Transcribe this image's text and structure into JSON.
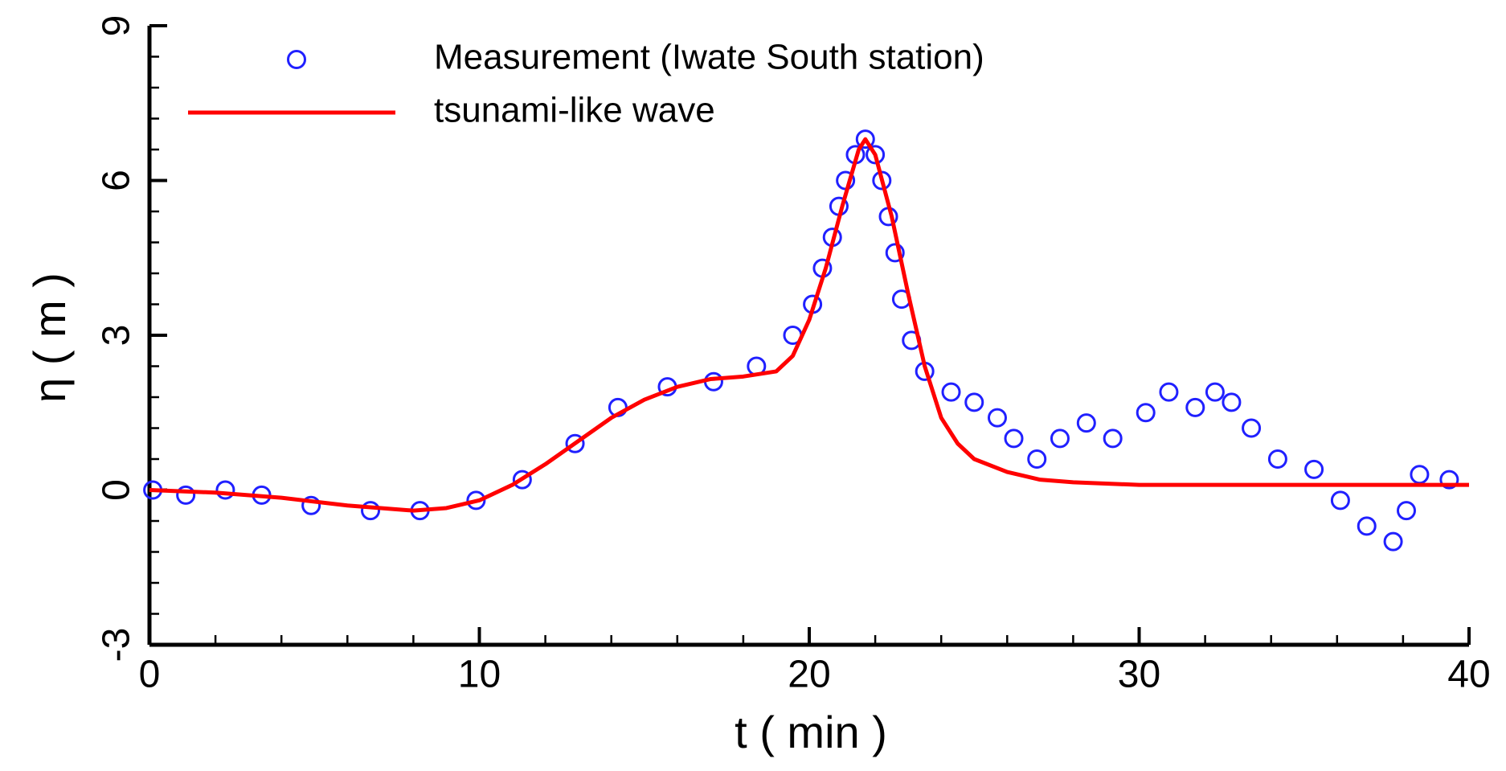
{
  "chart_data": {
    "type": "line",
    "xlabel": "t ( min )",
    "ylabel": "η ( m )",
    "xlim": [
      0,
      40
    ],
    "xticks": [
      0,
      10,
      20,
      30,
      40
    ],
    "xminorticks": [
      2,
      4,
      6,
      8,
      12,
      14,
      16,
      18,
      22,
      24,
      26,
      28,
      32,
      34,
      36,
      38
    ],
    "ylim": [
      -3,
      9
    ],
    "yticks": [
      -3,
      0,
      3,
      6,
      9
    ],
    "yminorticks": [
      -2.4,
      -1.8,
      -1.2,
      -0.6,
      0.6,
      1.2,
      1.8,
      2.4,
      3.6,
      4.2,
      4.8,
      5.4,
      6.6,
      7.2,
      7.8,
      8.4
    ],
    "legend": "upper left",
    "series": [
      {
        "name": "Measurement (Iwate South station)",
        "type": "scatter",
        "color": "#2020ff",
        "x": [
          0.1,
          1.1,
          2.3,
          3.4,
          4.9,
          6.7,
          8.2,
          9.9,
          11.3,
          12.9,
          14.2,
          15.7,
          17.1,
          18.4,
          19.5,
          20.1,
          20.4,
          20.7,
          20.9,
          21.1,
          21.4,
          21.7,
          22.0,
          22.2,
          22.4,
          22.6,
          22.8,
          23.1,
          23.5,
          24.3,
          25.0,
          25.7,
          26.2,
          26.9,
          27.6,
          28.4,
          29.2,
          30.2,
          30.9,
          31.7,
          32.3,
          32.8,
          33.4,
          34.2,
          35.3,
          36.1,
          36.9,
          37.7,
          38.1,
          38.5,
          39.4
        ],
        "values": [
          0,
          -0.1,
          0,
          -0.1,
          -0.3,
          -0.4,
          -0.4,
          -0.2,
          0.2,
          0.9,
          1.6,
          2.0,
          2.1,
          2.4,
          3.0,
          3.6,
          4.3,
          4.9,
          5.5,
          6.0,
          6.5,
          6.8,
          6.5,
          6.0,
          5.3,
          4.6,
          3.7,
          2.9,
          2.3,
          1.9,
          1.7,
          1.4,
          1.0,
          0.6,
          1.0,
          1.3,
          1.0,
          1.5,
          1.9,
          1.6,
          1.9,
          1.7,
          1.2,
          0.6,
          0.4,
          -0.2,
          -0.7,
          -1.0,
          -0.4,
          0.3,
          0.2
        ]
      },
      {
        "name": "tsunami-like wave",
        "type": "line",
        "color": "#ff0000",
        "x": [
          0,
          2,
          4,
          6,
          8,
          9,
          10,
          11,
          12,
          13,
          14,
          15,
          16,
          17,
          18,
          19,
          19.5,
          20,
          20.5,
          21,
          21.5,
          21.7,
          22,
          22.5,
          23,
          23.5,
          24,
          24.5,
          25,
          26,
          27,
          28,
          30,
          35,
          40
        ],
        "values": [
          0,
          -0.05,
          -0.15,
          -0.3,
          -0.4,
          -0.35,
          -0.2,
          0.1,
          0.5,
          0.95,
          1.4,
          1.75,
          2.0,
          2.15,
          2.2,
          2.3,
          2.6,
          3.3,
          4.3,
          5.5,
          6.6,
          6.8,
          6.5,
          5.3,
          3.8,
          2.4,
          1.4,
          0.9,
          0.6,
          0.35,
          0.2,
          0.15,
          0.1,
          0.1,
          0.1
        ]
      }
    ]
  }
}
